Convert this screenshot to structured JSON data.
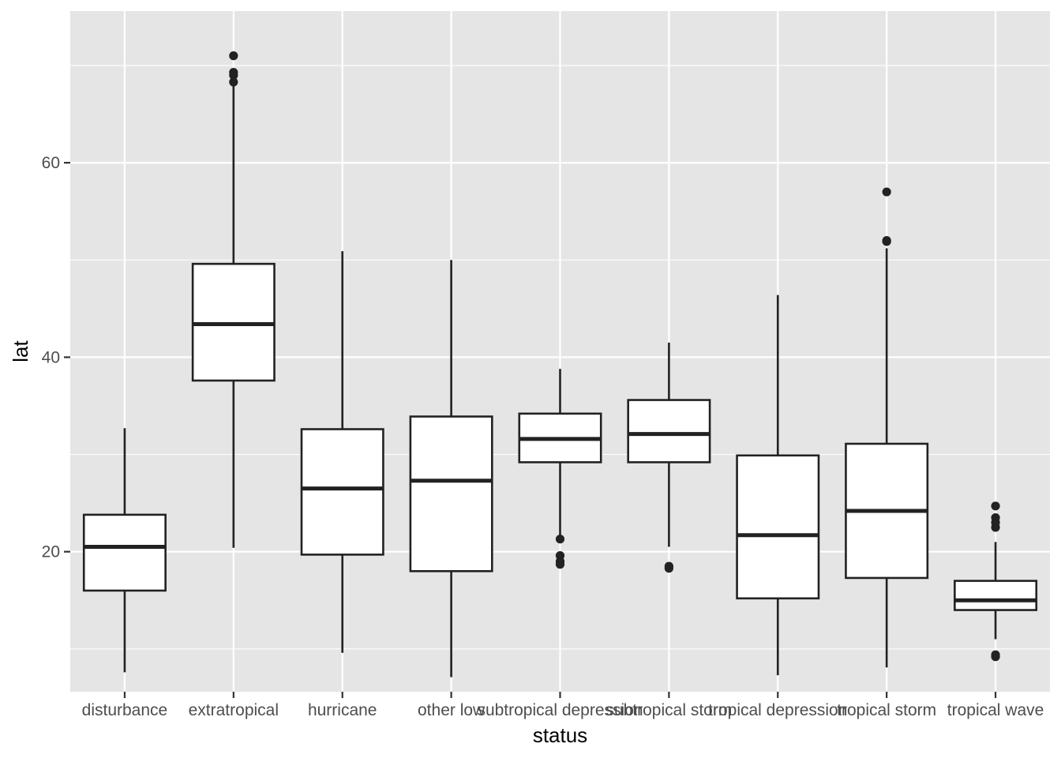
{
  "chart_data": {
    "type": "boxplot",
    "xlabel": "status",
    "ylabel": "lat",
    "ylim": [
      5.6,
      75.6
    ],
    "yticks": [
      20,
      40,
      60
    ],
    "grid": true,
    "panel_background": "#e5e5e5",
    "grid_color": "#ffffff",
    "box_fill": "#ffffff",
    "line_color": "#222222",
    "categories": [
      "disturbance",
      "extratropical",
      "hurricane",
      "other low",
      "subtropical depression",
      "subtropical storm",
      "tropical depression",
      "tropical storm",
      "tropical wave"
    ],
    "boxes": [
      {
        "lower_whisker": 7.6,
        "q1": 16.0,
        "median": 20.5,
        "q3": 23.8,
        "upper_whisker": 32.7,
        "outliers": []
      },
      {
        "lower_whisker": 20.4,
        "q1": 37.6,
        "median": 43.4,
        "q3": 49.6,
        "upper_whisker": 68.0,
        "outliers": [
          68.3,
          69.0,
          69.3,
          71.0
        ]
      },
      {
        "lower_whisker": 9.6,
        "q1": 19.7,
        "median": 26.5,
        "q3": 32.6,
        "upper_whisker": 50.9,
        "outliers": []
      },
      {
        "lower_whisker": 7.1,
        "q1": 18.0,
        "median": 27.3,
        "q3": 33.9,
        "upper_whisker": 50.0,
        "outliers": []
      },
      {
        "lower_whisker": 21.5,
        "q1": 29.2,
        "median": 31.6,
        "q3": 34.2,
        "upper_whisker": 38.8,
        "outliers": [
          18.7,
          19.0,
          19.6,
          21.3
        ]
      },
      {
        "lower_whisker": 20.5,
        "q1": 29.2,
        "median": 32.1,
        "q3": 35.6,
        "upper_whisker": 41.5,
        "outliers": [
          18.3,
          18.5
        ]
      },
      {
        "lower_whisker": 7.3,
        "q1": 15.2,
        "median": 21.7,
        "q3": 29.9,
        "upper_whisker": 46.4,
        "outliers": []
      },
      {
        "lower_whisker": 8.1,
        "q1": 17.3,
        "median": 24.2,
        "q3": 31.1,
        "upper_whisker": 51.2,
        "outliers": [
          51.9,
          52.0,
          57.0
        ]
      },
      {
        "lower_whisker": 11.0,
        "q1": 14.0,
        "median": 15.0,
        "q3": 17.0,
        "upper_whisker": 21.0,
        "outliers": [
          9.2,
          9.4,
          22.5,
          23.0,
          23.5,
          24.7
        ]
      }
    ]
  }
}
